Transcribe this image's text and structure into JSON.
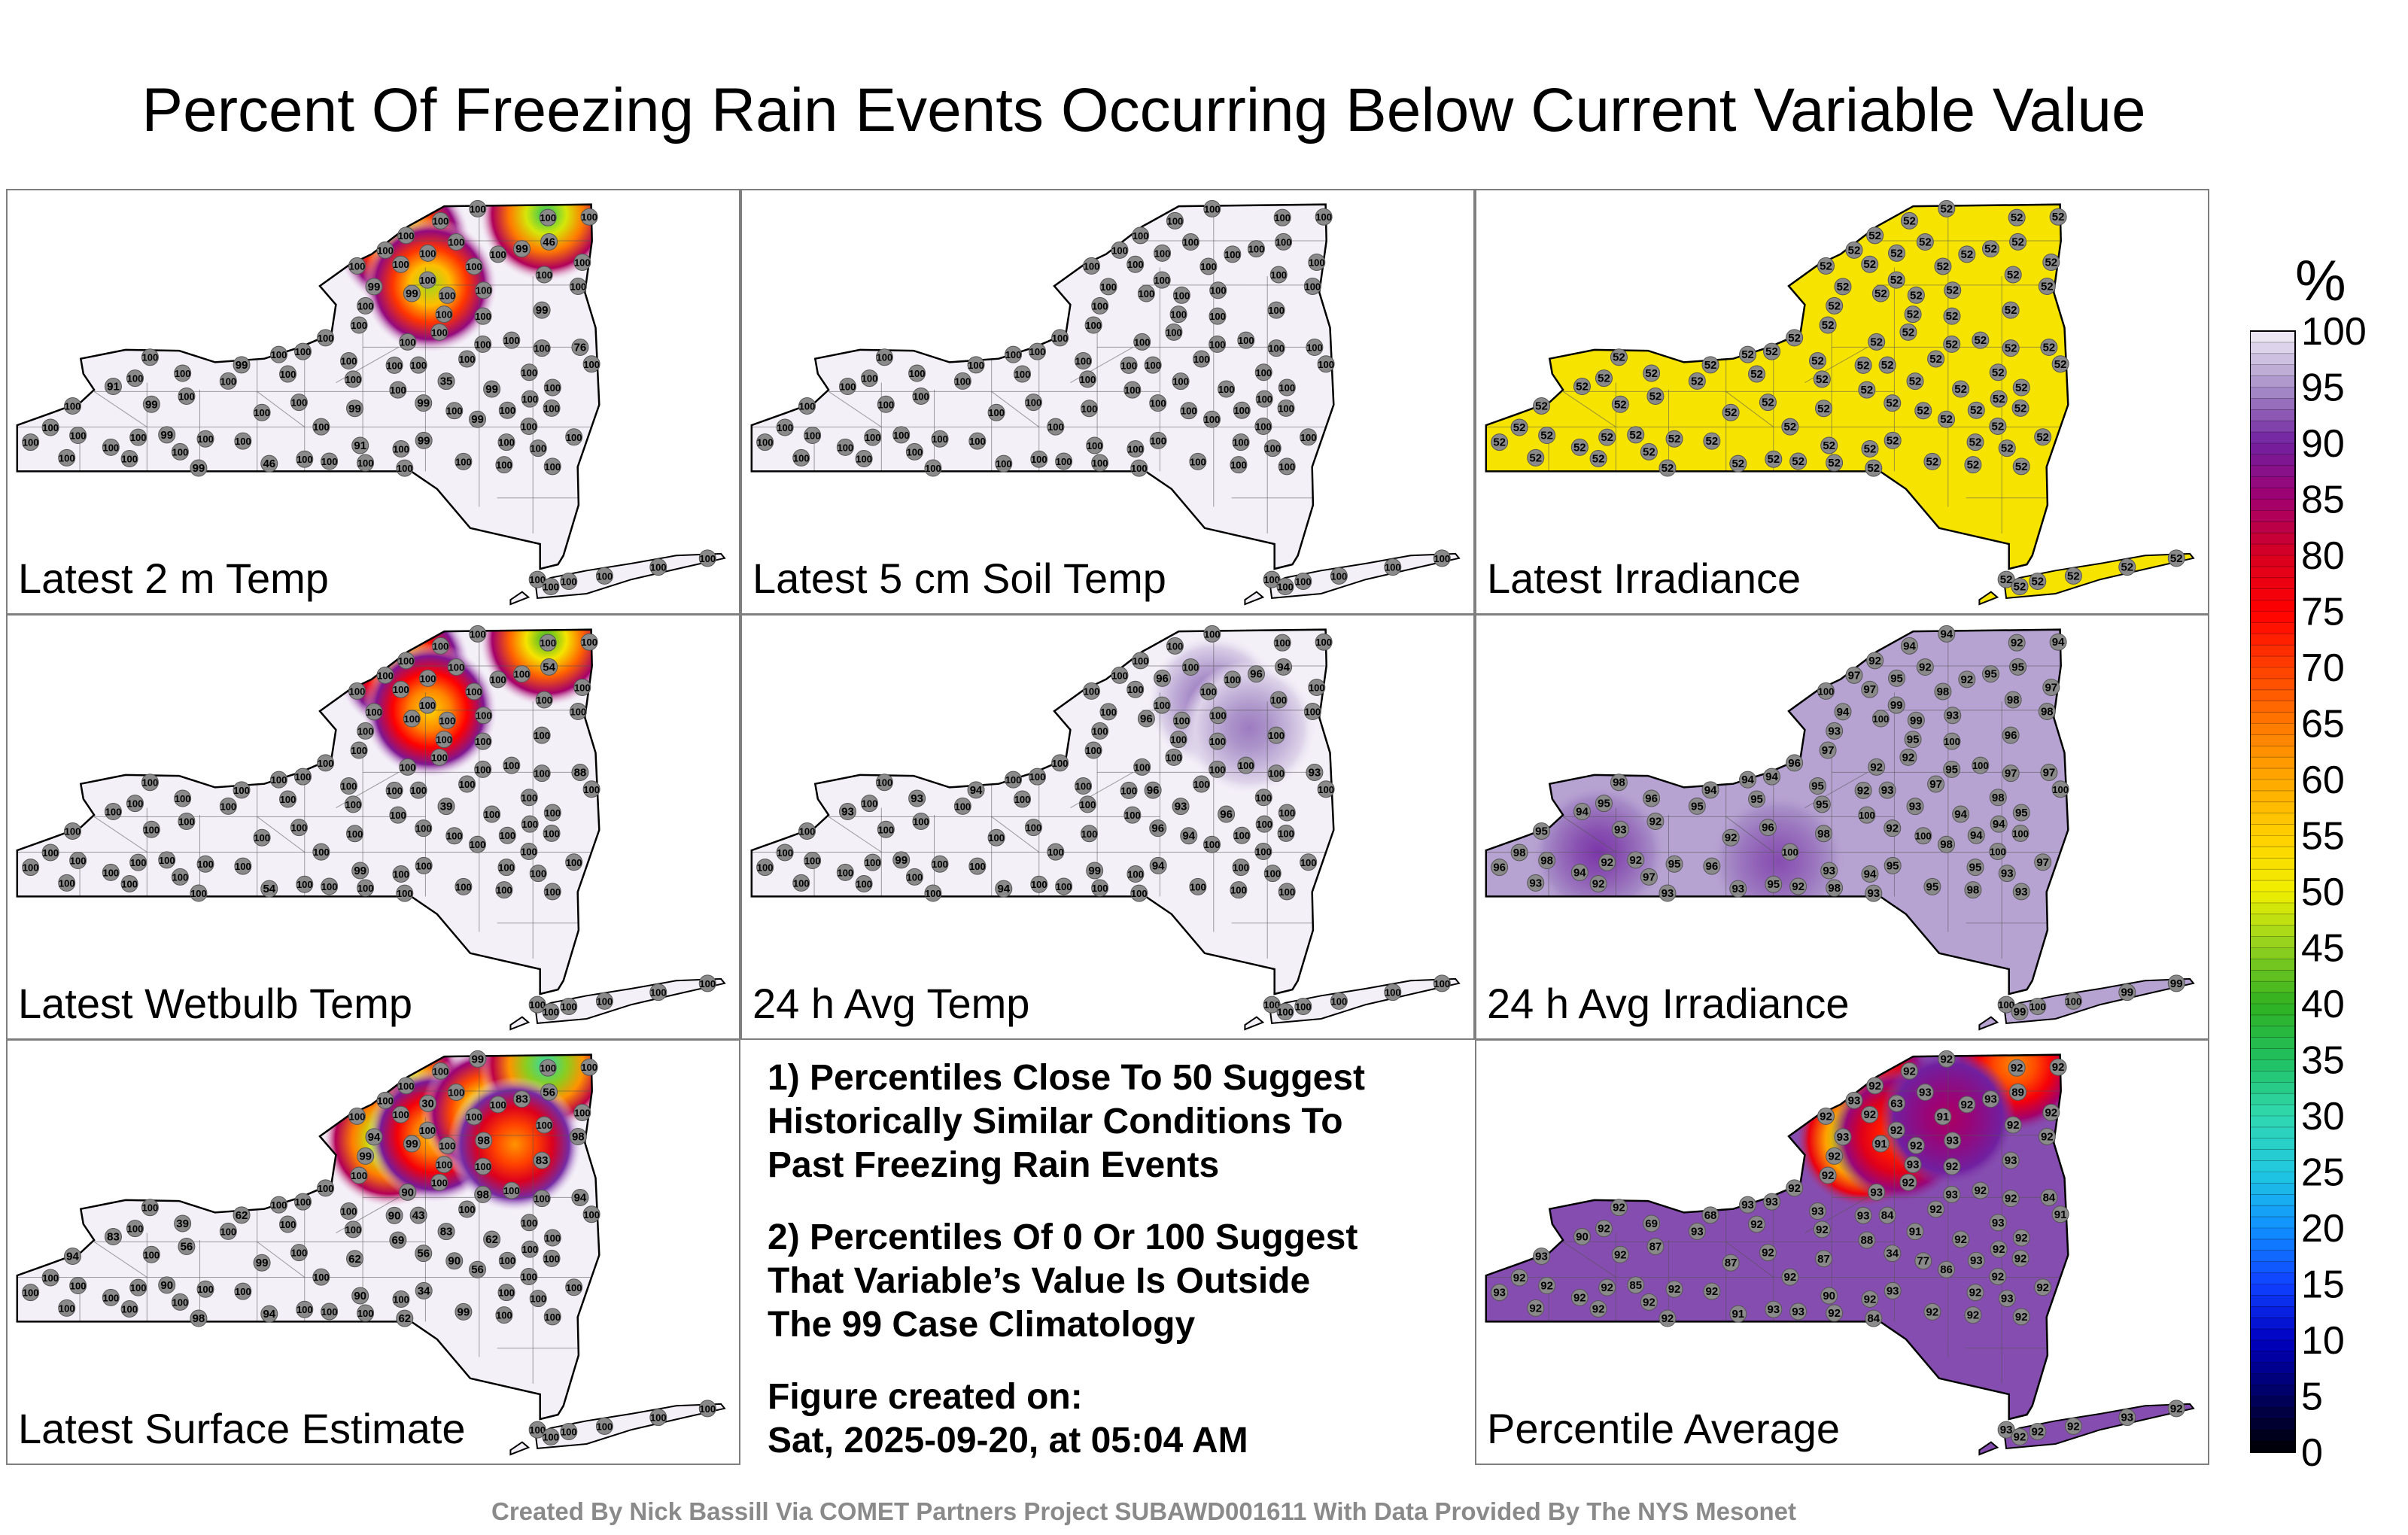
{
  "title": "Percent Of Freezing Rain Events Occurring Below Current Variable Value",
  "footer": "Created By Nick Bassill Via COMET Partners Project SUBAWD001611 With Data Provided By The NYS Mesonet",
  "notes": {
    "note1": [
      "1) Percentiles Close To 50 Suggest",
      "Historically Similar Conditions To",
      "Past Freezing Rain Events"
    ],
    "note2": [
      "2) Percentiles Of 0 Or 100 Suggest",
      "That Variable’s Value Is Outside",
      "The 99 Case Climatology"
    ],
    "created": [
      "Figure created on:",
      "Sat, 2025-09-20, at 05:04 AM"
    ]
  },
  "colorbar": {
    "unit": "%",
    "ticks": [
      "100",
      "95",
      "90",
      "85",
      "80",
      "75",
      "70",
      "65",
      "60",
      "55",
      "50",
      "45",
      "40",
      "35",
      "30",
      "25",
      "20",
      "15",
      "10",
      "5",
      "0"
    ],
    "stops": [
      {
        "v": 0,
        "c": "#000000"
      },
      {
        "v": 5,
        "c": "#000060"
      },
      {
        "v": 10,
        "c": "#0000c0"
      },
      {
        "v": 15,
        "c": "#1040ff"
      },
      {
        "v": 20,
        "c": "#1090ff"
      },
      {
        "v": 25,
        "c": "#20c8e0"
      },
      {
        "v": 30,
        "c": "#30d8b0"
      },
      {
        "v": 35,
        "c": "#20c060"
      },
      {
        "v": 40,
        "c": "#30b020"
      },
      {
        "v": 45,
        "c": "#90d020"
      },
      {
        "v": 50,
        "c": "#f0f000"
      },
      {
        "v": 55,
        "c": "#ffd000"
      },
      {
        "v": 60,
        "c": "#ffa800"
      },
      {
        "v": 65,
        "c": "#ff7800"
      },
      {
        "v": 70,
        "c": "#ff4000"
      },
      {
        "v": 75,
        "c": "#ff0000"
      },
      {
        "v": 80,
        "c": "#d80020"
      },
      {
        "v": 85,
        "c": "#a00070"
      },
      {
        "v": 90,
        "c": "#7020a0"
      },
      {
        "v": 95,
        "c": "#a890c8"
      },
      {
        "v": 100,
        "c": "#f4f0f8"
      }
    ]
  },
  "chart_data": [
    {
      "type": "heatmap",
      "title": "Latest 2 m Temp",
      "base": 100,
      "hotspots": [
        {
          "lon": -75.45,
          "lat": 44.6,
          "value": 46
        },
        {
          "lon": -75.15,
          "lat": 44.1,
          "value": 46
        },
        {
          "lon": -73.85,
          "lat": 44.9,
          "value": 35
        }
      ],
      "station_values": [
        100,
        99,
        100,
        35,
        99,
        99,
        99,
        100,
        46,
        91,
        76,
        100,
        99,
        99,
        91,
        100,
        99,
        99,
        46,
        99,
        100,
        100,
        100,
        100,
        99,
        99,
        100,
        100,
        100,
        100,
        99,
        100,
        100,
        100,
        100,
        99,
        100,
        100,
        100,
        100,
        100,
        100,
        100,
        100,
        100,
        100,
        100,
        100,
        100,
        100,
        100,
        100,
        100,
        100,
        100,
        100,
        100,
        100,
        100,
        100,
        100,
        100,
        100,
        100,
        100,
        100,
        100,
        100,
        100,
        100,
        100,
        100,
        100,
        100,
        100,
        100,
        100,
        100,
        100,
        100,
        100,
        100,
        100,
        100,
        100,
        100,
        100,
        100,
        100,
        100,
        100,
        100,
        100,
        100,
        100,
        100,
        100,
        100,
        100,
        100
      ]
    },
    {
      "type": "heatmap",
      "title": "Latest 5 cm Soil Temp",
      "base": 100,
      "hotspots": [],
      "station_values": [
        100,
        100,
        100,
        100,
        100,
        100,
        100,
        100,
        100,
        100,
        100,
        100,
        100,
        100,
        100,
        100,
        100,
        100,
        100,
        100,
        100,
        100,
        100,
        100,
        100,
        100,
        100,
        100,
        100,
        100,
        100,
        100,
        100,
        100,
        100,
        100,
        100,
        100,
        100,
        100,
        100,
        100,
        100,
        100,
        100,
        100,
        100,
        100,
        100,
        100,
        100,
        100,
        100,
        100,
        100,
        100,
        100,
        100,
        100,
        100,
        100,
        100,
        100,
        100,
        100,
        100,
        100,
        100,
        100,
        100,
        100,
        100,
        100,
        100,
        100,
        100,
        100,
        100,
        100,
        100,
        100,
        100,
        100,
        100,
        100,
        100,
        100,
        100,
        100,
        100,
        100,
        100,
        100,
        100,
        100,
        100,
        100,
        100,
        100,
        100
      ]
    },
    {
      "type": "heatmap",
      "title": "Latest Irradiance",
      "base": 52,
      "hotspots": [],
      "station_values": [
        52,
        52,
        52,
        52,
        52,
        52,
        52,
        52,
        52,
        52,
        52,
        52,
        52,
        52,
        52,
        52,
        52,
        52,
        52,
        52,
        52,
        52,
        52,
        52,
        52,
        52,
        52,
        52,
        52,
        52,
        52,
        52,
        52,
        52,
        52,
        52,
        52,
        52,
        52,
        52,
        52,
        52,
        52,
        52,
        52,
        52,
        52,
        52,
        52,
        52,
        52,
        52,
        52,
        52,
        52,
        52,
        52,
        52,
        52,
        52,
        52,
        52,
        52,
        52,
        52,
        52,
        52,
        52,
        52,
        52,
        52,
        52,
        52,
        52,
        52,
        52,
        52,
        52,
        52,
        52,
        52,
        52,
        52,
        52,
        52,
        52,
        52,
        52,
        52,
        52,
        52,
        52,
        52,
        52,
        52,
        52,
        52,
        52,
        52,
        52
      ]
    },
    {
      "type": "heatmap",
      "title": "Latest Wetbulb Temp",
      "base": 100,
      "hotspots": [
        {
          "lon": -75.45,
          "lat": 44.6,
          "value": 54
        },
        {
          "lon": -75.15,
          "lat": 44.1,
          "value": 54
        },
        {
          "lon": -73.85,
          "lat": 44.9,
          "value": 39
        }
      ],
      "station_values": [
        100,
        100,
        100,
        39,
        100,
        100,
        100,
        100,
        54,
        100,
        88,
        100,
        100,
        100,
        99,
        100,
        100,
        100,
        54,
        100,
        100,
        100,
        100,
        100,
        100,
        100,
        100,
        100,
        100,
        100,
        100,
        100,
        100,
        100,
        100,
        100,
        100,
        100,
        100,
        100,
        100,
        100,
        100,
        100,
        100,
        100,
        100,
        100,
        100,
        100,
        100,
        100,
        100,
        100,
        100,
        100,
        100,
        100,
        100,
        100,
        100,
        100,
        100,
        100,
        100,
        100,
        100,
        100,
        100,
        100,
        100,
        100,
        100,
        100,
        100,
        100,
        100,
        100,
        100,
        100,
        100,
        100,
        100,
        100,
        100,
        100,
        100,
        100,
        100,
        100,
        100,
        100,
        100,
        100,
        100,
        100,
        100,
        100,
        100,
        100
      ]
    },
    {
      "type": "heatmap",
      "title": "24 h Avg Temp",
      "base": 100,
      "hotspots": [
        {
          "lon": -74.6,
          "lat": 44.2,
          "value": 93
        },
        {
          "lon": -74.2,
          "lat": 43.9,
          "value": 94
        }
      ],
      "station_values": [
        100,
        96,
        96,
        93,
        100,
        100,
        96,
        93,
        94,
        93,
        93,
        94,
        96,
        94,
        99,
        96,
        96,
        94,
        94,
        99,
        100,
        100,
        100,
        100,
        100,
        100,
        100,
        100,
        100,
        100,
        100,
        100,
        100,
        100,
        100,
        100,
        100,
        100,
        100,
        100,
        100,
        100,
        100,
        100,
        100,
        100,
        100,
        100,
        100,
        100,
        100,
        100,
        100,
        100,
        100,
        100,
        100,
        100,
        100,
        100,
        100,
        100,
        100,
        100,
        100,
        100,
        100,
        100,
        100,
        100,
        100,
        100,
        100,
        100,
        100,
        100,
        100,
        100,
        100,
        100,
        100,
        100,
        100,
        100,
        100,
        100,
        100,
        100,
        100,
        100,
        100,
        100,
        100,
        100,
        100,
        100,
        100,
        100,
        100,
        100
      ]
    },
    {
      "type": "heatmap",
      "title": "24 h Avg Irradiance",
      "base": 96,
      "hotspots": [
        {
          "lon": -78.5,
          "lat": 42.5,
          "value": 91
        },
        {
          "lon": -76.5,
          "lat": 42.4,
          "value": 92
        }
      ],
      "station_values": [
        100,
        100,
        95,
        93,
        98,
        98,
        95,
        96,
        95,
        94,
        97,
        100,
        94,
        95,
        93,
        93,
        92,
        94,
        93,
        92,
        93,
        92,
        92,
        95,
        94,
        96,
        92,
        93,
        95,
        94,
        93,
        92,
        98,
        98,
        95,
        93,
        92,
        95,
        95,
        95,
        94,
        92,
        93,
        98,
        94,
        92,
        92,
        94,
        92,
        95,
        97,
        97,
        96,
        98,
        100,
        100,
        97,
        97,
        100,
        98,
        94,
        95,
        93,
        93,
        94,
        92,
        92,
        92,
        97,
        97,
        98,
        99,
        96,
        98,
        98,
        95,
        94,
        94,
        97,
        95,
        95,
        94,
        93,
        97,
        99,
        100,
        100,
        98,
        95,
        95,
        96,
        100,
        100,
        96,
        100,
        99,
        100,
        100,
        99,
        99
      ]
    },
    {
      "type": "heatmap",
      "title": "Latest Surface Estimate",
      "base": 100,
      "hotspots": [
        {
          "lon": -75.45,
          "lat": 44.6,
          "value": 39
        },
        {
          "lon": -75.6,
          "lat": 44.05,
          "value": 34
        },
        {
          "lon": -75.1,
          "lat": 44.1,
          "value": 56
        },
        {
          "lon": -74.5,
          "lat": 44.35,
          "value": 43
        },
        {
          "lon": -73.85,
          "lat": 44.9,
          "value": 30
        },
        {
          "lon": -74.2,
          "lat": 44.0,
          "value": 62
        }
      ],
      "station_values": [
        69,
        99,
        30,
        83,
        56,
        62,
        83,
        39,
        56,
        83,
        94,
        90,
        62,
        34,
        90,
        43,
        56,
        62,
        94,
        90,
        62,
        56,
        99,
        98,
        94,
        83,
        90,
        98,
        94,
        99,
        98,
        90,
        98,
        100,
        100,
        100,
        100,
        99,
        100,
        100,
        100,
        100,
        99,
        100,
        100,
        100,
        100,
        100,
        100,
        100,
        100,
        100,
        100,
        100,
        100,
        100,
        100,
        100,
        100,
        100,
        100,
        100,
        100,
        100,
        100,
        100,
        100,
        100,
        100,
        100,
        100,
        100,
        100,
        100,
        100,
        100,
        100,
        100,
        100,
        100,
        100,
        100,
        100,
        100,
        100,
        100,
        100,
        100,
        100,
        100,
        100,
        100,
        100,
        100,
        100,
        100,
        100,
        100,
        100,
        100
      ]
    },
    {
      "type": "heatmap",
      "title": "Percentile Average",
      "base": 92,
      "hotspots": [
        {
          "lon": -75.45,
          "lat": 44.6,
          "value": 69
        },
        {
          "lon": -75.55,
          "lat": 44.05,
          "value": 34
        },
        {
          "lon": -75.15,
          "lat": 44.1,
          "value": 68
        },
        {
          "lon": -73.85,
          "lat": 44.9,
          "value": 63
        },
        {
          "lon": -74.6,
          "lat": 44.3,
          "value": 84
        }
      ],
      "station_values": [
        88,
        91,
        63,
        91,
        86,
        87,
        93,
        69,
        89,
        90,
        84,
        77,
        92,
        93,
        90,
        84,
        34,
        68,
        91,
        85,
        84,
        87,
        87,
        93,
        93,
        93,
        93,
        93,
        93,
        92,
        92,
        93,
        92,
        92,
        92,
        92,
        92,
        92,
        92,
        92,
        92,
        92,
        92,
        92,
        92,
        92,
        92,
        92,
        92,
        92,
        92,
        92,
        92,
        92,
        92,
        92,
        92,
        92,
        91,
        91,
        92,
        92,
        92,
        93,
        93,
        93,
        93,
        92,
        92,
        92,
        92,
        92,
        92,
        92,
        92,
        93,
        93,
        93,
        93,
        93,
        92,
        92,
        92,
        92,
        92,
        92,
        92,
        93,
        93,
        93,
        92,
        92,
        92,
        93,
        93,
        92,
        92,
        92,
        93,
        92
      ]
    }
  ]
}
